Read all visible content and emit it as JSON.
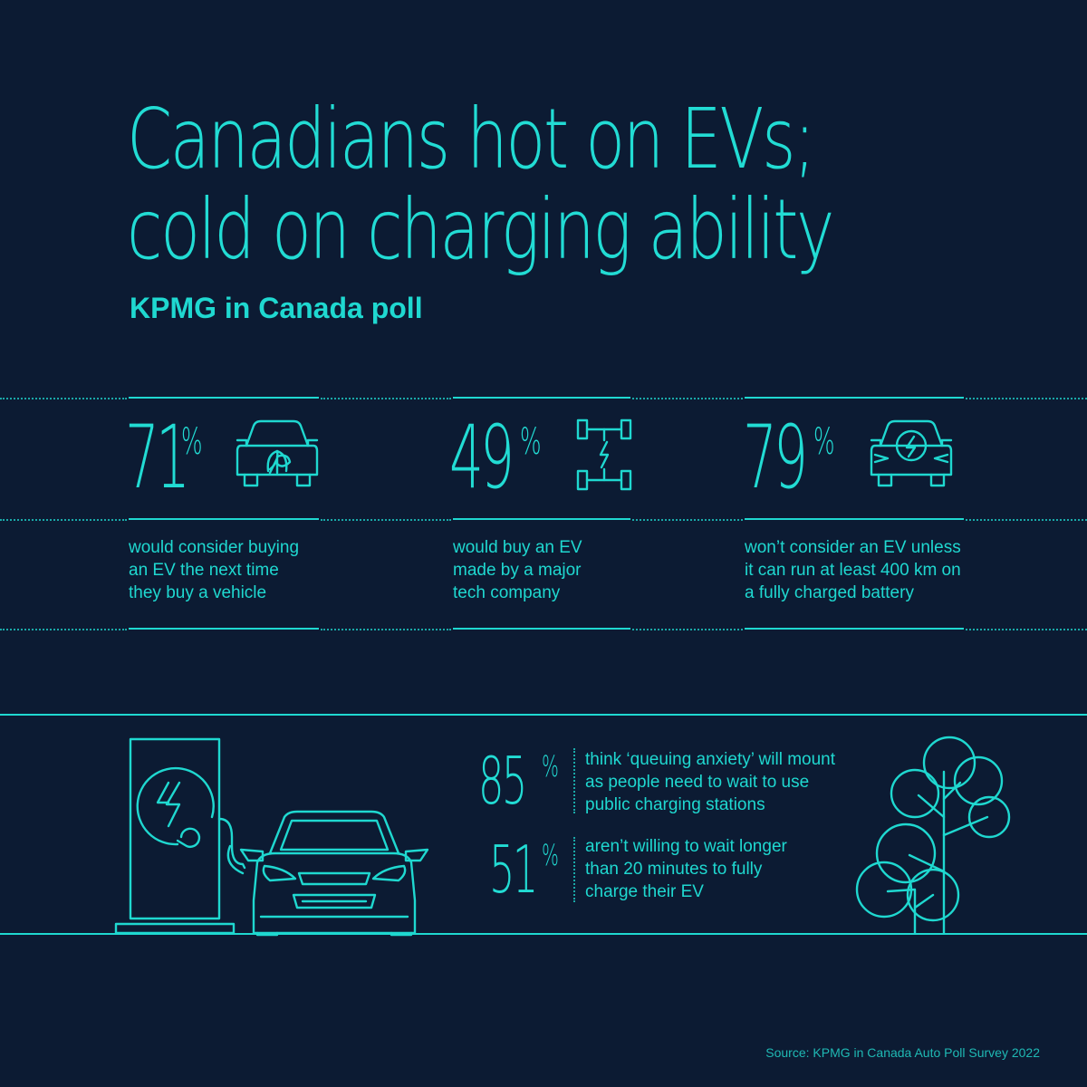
{
  "title": {
    "line1": "Canadians hot on EVs;",
    "line2": "cold on charging ability"
  },
  "subtitle": "KPMG in Canada poll",
  "stats": [
    {
      "value": "71",
      "unit": "%",
      "icon": "eco-car-icon",
      "lines": [
        "would consider buying",
        "an EV the next time",
        "they buy a vehicle"
      ]
    },
    {
      "value": "49",
      "unit": "%",
      "icon": "ev-chassis-icon",
      "lines": [
        "would buy an EV",
        "made by a major",
        "tech company"
      ]
    },
    {
      "value": "79",
      "unit": "%",
      "icon": "electric-car-icon",
      "lines": [
        "won’t consider an EV unless",
        "it can run at least 400 km on",
        "a fully charged battery"
      ]
    }
  ],
  "bottom_stats": [
    {
      "value": "85",
      "unit": "%",
      "lines": [
        "think ‘queuing anxiety’ will mount",
        "as people need to wait to use",
        "public charging stations"
      ]
    },
    {
      "value": "51",
      "unit": "%",
      "lines": [
        "aren’t willing to wait longer",
        "than 20 minutes to fully",
        "charge their EV"
      ]
    }
  ],
  "illustration": {
    "charger": "charging-station-icon",
    "car": "car-front-icon",
    "tree": "tree-icon"
  },
  "source": "Source: KPMG in Canada Auto Poll Survey 2022",
  "colors": {
    "background": "#0c1b33",
    "accent": "#1fd8d0"
  }
}
